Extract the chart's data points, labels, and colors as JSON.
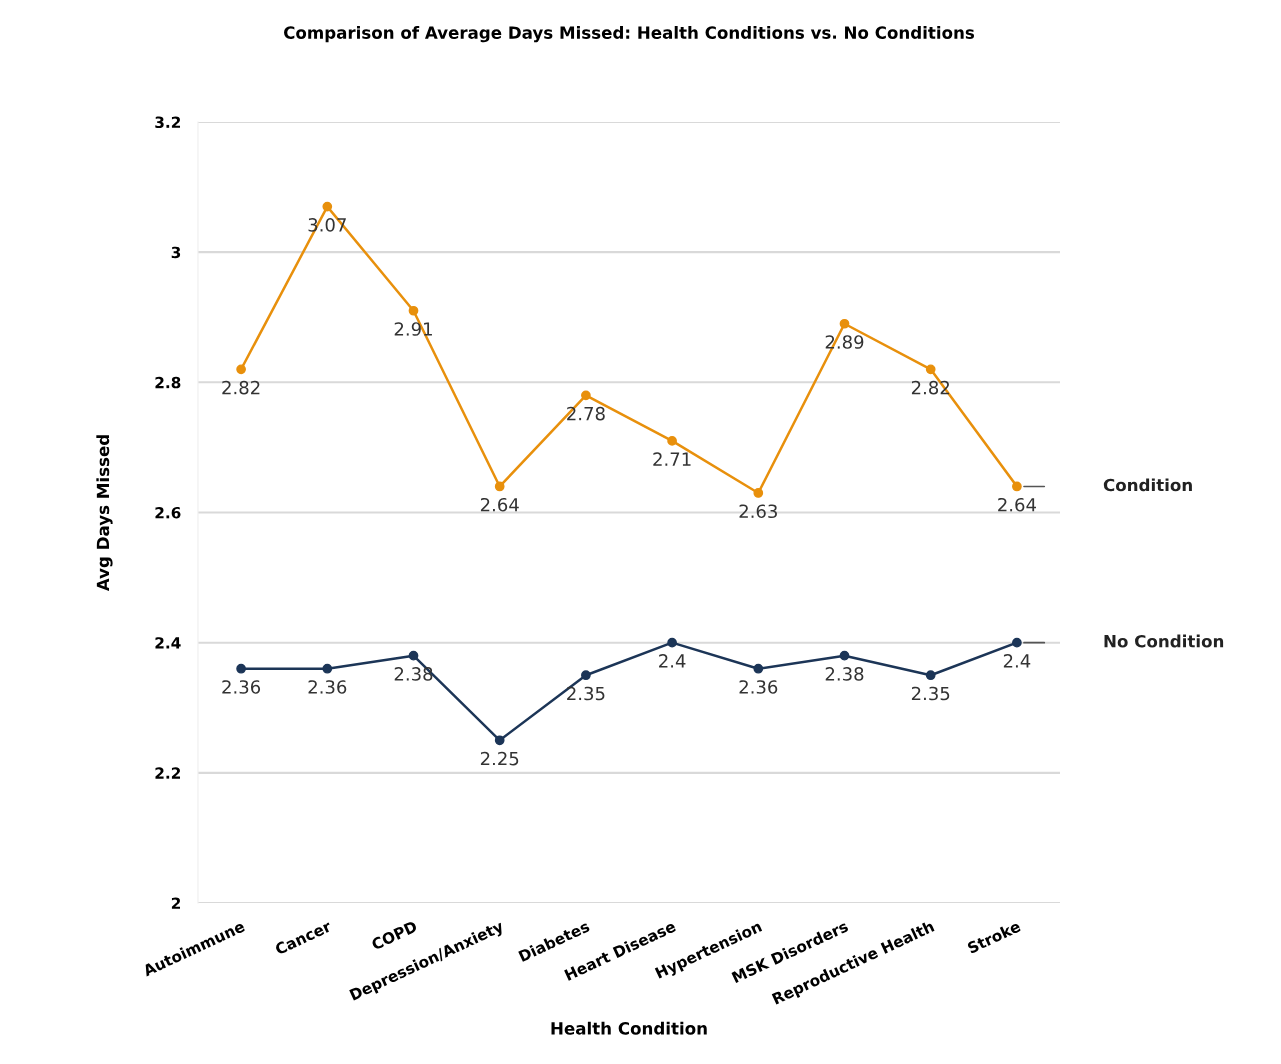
{
  "chart_data": {
    "type": "line",
    "title": "Comparison of Average Days Missed: Health Conditions vs. No Conditions",
    "xlabel": "Health Condition",
    "ylabel": "Avg Days Missed",
    "categories": [
      "Autoimmune",
      "Cancer",
      "COPD",
      "Depression/Anxiety",
      "Diabetes",
      "Heart Disease",
      "Hypertension",
      "MSK Disorders",
      "Reproductive Health",
      "Stroke"
    ],
    "series": [
      {
        "name": "Condition",
        "color": "#e8900c",
        "values": [
          2.82,
          3.07,
          2.91,
          2.64,
          2.78,
          2.71,
          2.63,
          2.89,
          2.82,
          2.64
        ]
      },
      {
        "name": "No Condition",
        "color": "#1c3557",
        "values": [
          2.36,
          2.36,
          2.38,
          2.25,
          2.35,
          2.4,
          2.36,
          2.38,
          2.35,
          2.4
        ]
      }
    ],
    "ylim": [
      2,
      3.2
    ],
    "yticks": [
      2,
      2.2,
      2.4,
      2.6,
      2.8,
      3,
      3.2
    ],
    "grid": "y",
    "legend": false,
    "marker": "circle",
    "line_style": "solid",
    "data_labels": true
  }
}
